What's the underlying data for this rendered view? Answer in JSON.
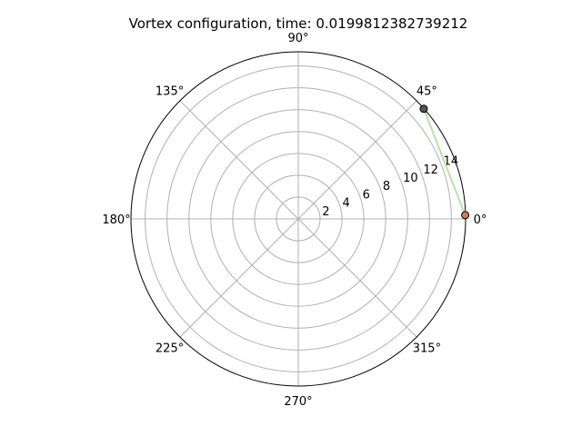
{
  "chart_data": {
    "type": "scatter",
    "projection": "polar",
    "title": "Vortex configuration, time: 0.0199812382739212",
    "theta_tick_labels": [
      "0°",
      "45°",
      "90°",
      "135°",
      "180°",
      "225°",
      "270°",
      "315°"
    ],
    "theta_ticks_deg": [
      0,
      45,
      90,
      135,
      180,
      225,
      270,
      315
    ],
    "r_tick_labels": [
      "2",
      "4",
      "6",
      "8",
      "10",
      "12",
      "14"
    ],
    "r_ticks": [
      2,
      4,
      6,
      8,
      10,
      12,
      14
    ],
    "rlim": [
      0,
      15.3
    ],
    "r_label_angle_deg": 22.5,
    "grid": true,
    "points": [
      {
        "r": 15.27,
        "theta_deg": 1.3,
        "color": "#d9775a"
      },
      {
        "r": 15.27,
        "theta_deg": 41.3,
        "color": "#555555"
      }
    ],
    "connector_color": "#b9e1a3",
    "grid_color": "#b0b0b0"
  }
}
